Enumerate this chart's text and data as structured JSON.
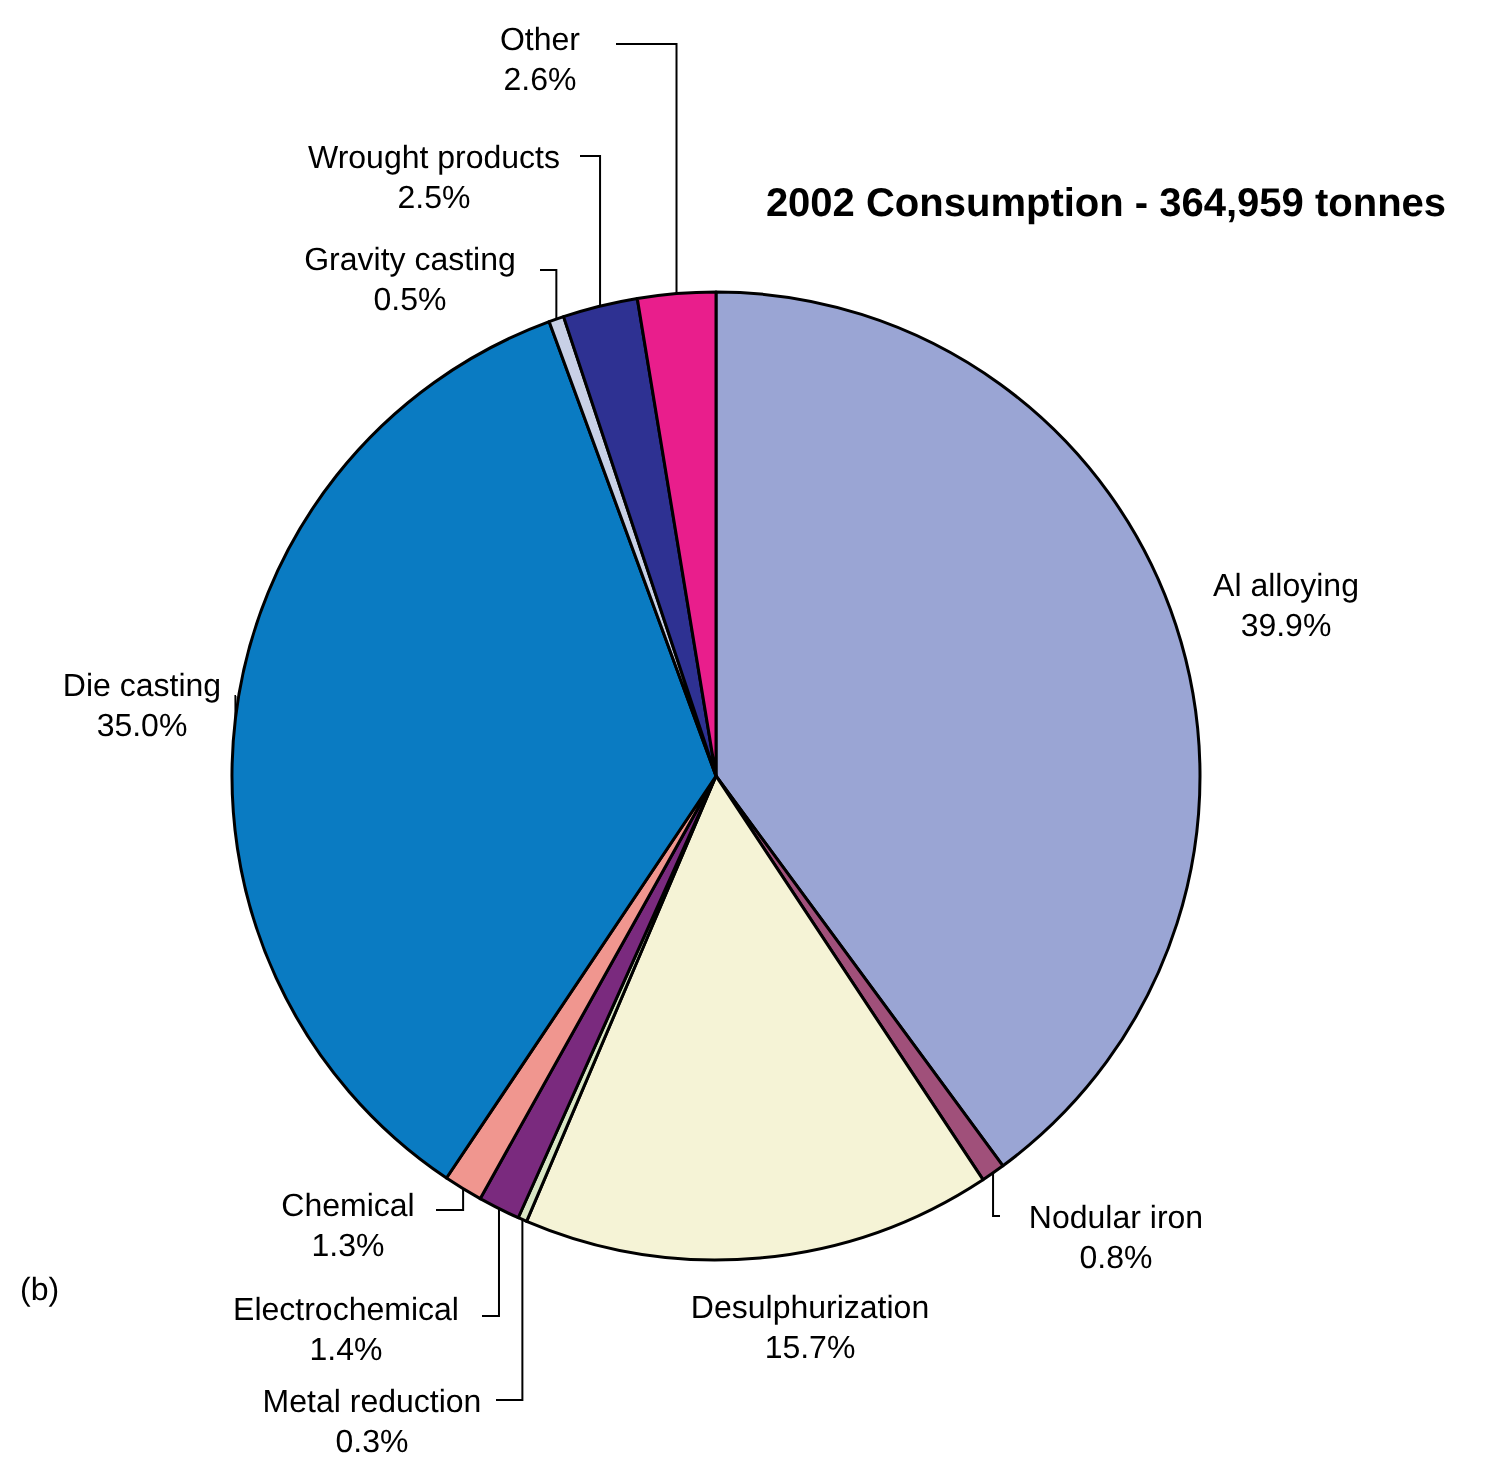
{
  "chart_data": {
    "type": "pie",
    "title": "2002 Consumption - 364,959 tonnes",
    "categories": [
      "Al alloying",
      "Nodular iron",
      "Desulphurization",
      "Metal reduction",
      "Electrochemical",
      "Chemical",
      "Die casting",
      "Gravity casting",
      "Wrought products",
      "Other"
    ],
    "values": [
      39.9,
      0.8,
      15.7,
      0.3,
      1.4,
      1.3,
      35.0,
      0.5,
      2.5,
      2.6
    ],
    "value_labels": [
      "39.9%",
      "0.8%",
      "15.7%",
      "0.3%",
      "1.4%",
      "1.3%",
      "35.0%",
      "0.5%",
      "2.5%",
      "2.6%"
    ],
    "colors": [
      "#9aa5d4",
      "#a0507a",
      "#f5f3d6",
      "#d8e6c4",
      "#7a2a7e",
      "#f0968f",
      "#0a7bc2",
      "#c8d0e6",
      "#2e3192",
      "#e91e8c"
    ],
    "annotations": [
      "(b)"
    ]
  }
}
